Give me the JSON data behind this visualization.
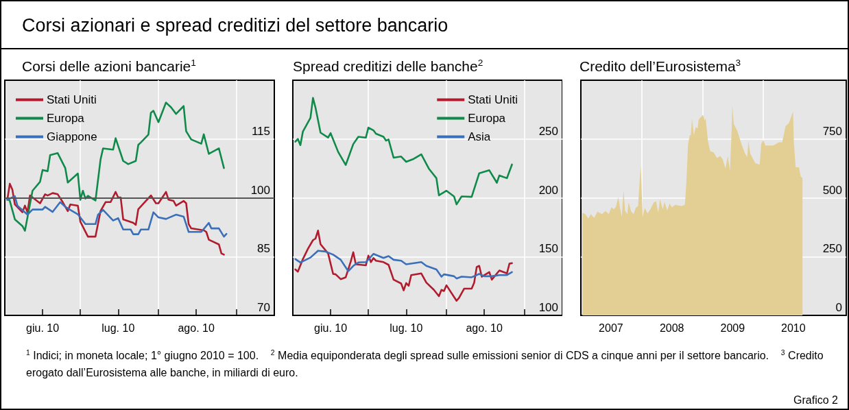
{
  "chart_data": [
    {
      "type": "other",
      "title": "Corsi azionari e spread creditizi del settore bancario",
      "annotations": [
        "$^{1}$ Indici; in moneta locale; 1° giugno 2010 = 100.",
        "$^{2}$ Media equiponderata degli spread sulle emissioni senior di CDS a cinque anni per il settore bancario.",
        "$^{3}$ Credito erogato dall’Eurosistema alle banche, in miliardi di euro.",
        "Grafico 2"
      ]
    },
    {
      "type": "line",
      "title": "Corsi delle azioni bancarie$^{1}$",
      "xlim": [
        "2010-06-01",
        "2010-09-16"
      ],
      "xticks": [
        {
          "value": "2010-06-16",
          "label": "giu. 10"
        },
        {
          "value": "2010-07-01",
          "label": null
        },
        {
          "value": "2010-07-16",
          "label": "lug. 10"
        },
        {
          "value": "2010-08-01",
          "label": null
        },
        {
          "value": "2010-08-16",
          "label": "ago. 10"
        },
        {
          "value": "2010-09-01",
          "label": null
        }
      ],
      "ylim": [
        70,
        130
      ],
      "yticks": [
        70,
        85,
        100,
        115
      ],
      "grid": true,
      "legend": "top left",
      "ref_lines": [
        {
          "axis": "y",
          "value": 100,
          "color": "#555555"
        }
      ],
      "series": [
        {
          "name": "Stati Uniti",
          "color": "#b01c2e",
          "x": [
            "2010-06-02",
            "2010-06-03",
            "2010-06-04",
            "2010-06-05",
            "2010-06-08",
            "2010-06-09",
            "2010-06-10",
            "2010-06-11",
            "2010-06-15",
            "2010-06-17",
            "2010-06-18",
            "2010-06-20",
            "2010-06-22",
            "2010-06-24",
            "2010-06-26",
            "2010-06-27",
            "2010-06-30",
            "2010-07-01",
            "2010-07-04",
            "2010-07-07",
            "2010-07-09",
            "2010-07-11",
            "2010-07-13",
            "2010-07-15",
            "2010-07-16",
            "2010-07-17",
            "2010-07-18",
            "2010-07-22",
            "2010-07-23",
            "2010-07-24",
            "2010-07-29",
            "2010-07-31",
            "2010-08-01",
            "2010-08-04",
            "2010-08-05",
            "2010-08-07",
            "2010-08-08",
            "2010-08-11",
            "2010-08-12",
            "2010-08-13",
            "2010-08-14",
            "2010-08-19",
            "2010-08-20",
            "2010-08-21",
            "2010-08-25",
            "2010-08-26",
            "2010-08-27"
          ],
          "values": [
            99.5,
            103.6,
            102.1,
            98.3,
            96.3,
            98.0,
            96.3,
            100.6,
            98.6,
            100.9,
            100.6,
            101.2,
            100.9,
            98.9,
            96.6,
            98.3,
            98.0,
            93.9,
            90.1,
            90.1,
            96.6,
            98.9,
            98.9,
            101.5,
            100.1,
            100.1,
            94.5,
            93.6,
            93.1,
            97.1,
            100.6,
            98.6,
            98.6,
            101.5,
            99.5,
            99.2,
            98.0,
            99.2,
            98.6,
            93.3,
            92.2,
            91.7,
            91.3,
            89.3,
            88.1,
            85.8,
            85.5
          ]
        },
        {
          "name": "Europa",
          "color": "#0f8a4a",
          "x": [
            "2010-06-02",
            "2010-06-03",
            "2010-06-05",
            "2010-06-08",
            "2010-06-09",
            "2010-06-12",
            "2010-06-15",
            "2010-06-16",
            "2010-06-18",
            "2010-06-19",
            "2010-06-22",
            "2010-06-25",
            "2010-06-26",
            "2010-06-30",
            "2010-07-01",
            "2010-07-02",
            "2010-07-03",
            "2010-07-04",
            "2010-07-07",
            "2010-07-09",
            "2010-07-10",
            "2010-07-14",
            "2010-07-15",
            "2010-07-18",
            "2010-07-20",
            "2010-07-23",
            "2010-07-24",
            "2010-07-25",
            "2010-07-28",
            "2010-07-29",
            "2010-07-30",
            "2010-08-01",
            "2010-08-04",
            "2010-08-06",
            "2010-08-08",
            "2010-08-11",
            "2010-08-12",
            "2010-08-14",
            "2010-08-18",
            "2010-08-19",
            "2010-08-21",
            "2010-08-25",
            "2010-08-27"
          ],
          "values": [
            99.8,
            99.2,
            94.5,
            92.8,
            91.6,
            101.8,
            104.1,
            107.1,
            106.8,
            110.9,
            111.4,
            107.6,
            103.9,
            106.2,
            99.5,
            101.8,
            99.8,
            100.5,
            99.3,
            109.7,
            112.6,
            112.3,
            115.2,
            109.4,
            108.6,
            109.4,
            113.5,
            114.1,
            116.1,
            121.7,
            122.2,
            119.3,
            124.3,
            123.1,
            121.4,
            123.4,
            117.0,
            114.9,
            113.8,
            116.2,
            111.2,
            112.6,
            107.6
          ]
        },
        {
          "name": "Giappone",
          "color": "#3a6fba",
          "x": [
            "2010-06-02",
            "2010-06-05",
            "2010-06-06",
            "2010-06-10",
            "2010-06-12",
            "2010-06-16",
            "2010-06-17",
            "2010-06-20",
            "2010-06-23",
            "2010-06-25",
            "2010-06-27",
            "2010-06-30",
            "2010-07-03",
            "2010-07-07",
            "2010-07-08",
            "2010-07-10",
            "2010-07-14",
            "2010-07-16",
            "2010-07-18",
            "2010-07-21",
            "2010-07-22",
            "2010-07-24",
            "2010-07-25",
            "2010-07-28",
            "2010-07-30",
            "2010-08-01",
            "2010-08-04",
            "2010-08-08",
            "2010-08-11",
            "2010-08-13",
            "2010-08-18",
            "2010-08-21",
            "2010-08-22",
            "2010-08-25",
            "2010-08-27",
            "2010-08-28"
          ],
          "values": [
            99.5,
            100.4,
            98.0,
            95.7,
            97.0,
            97.0,
            97.7,
            96.4,
            98.9,
            97.7,
            96.9,
            95.8,
            93.3,
            93.3,
            95.7,
            96.9,
            94.2,
            94.8,
            91.9,
            91.9,
            90.7,
            90.7,
            91.9,
            91.9,
            96.3,
            95.0,
            94.6,
            95.7,
            95.2,
            91.3,
            91.3,
            93.6,
            92.2,
            92.2,
            90.1,
            90.8
          ]
        }
      ]
    },
    {
      "type": "line",
      "title": "Spread creditizi delle banche$^{2}$",
      "xlim": [
        "2010-06-01",
        "2010-09-16"
      ],
      "xticks": [
        {
          "value": "2010-06-16",
          "label": "giu. 10"
        },
        {
          "value": "2010-07-01",
          "label": null
        },
        {
          "value": "2010-07-16",
          "label": "lug. 10"
        },
        {
          "value": "2010-08-01",
          "label": null
        },
        {
          "value": "2010-08-16",
          "label": "ago. 10"
        },
        {
          "value": "2010-09-01",
          "label": null
        }
      ],
      "ylim": [
        100,
        300
      ],
      "yticks": [
        100,
        150,
        200,
        250
      ],
      "grid": true,
      "legend": "top right",
      "series": [
        {
          "name": "Stati Uniti",
          "color": "#b01c2e",
          "x": [
            "2010-06-02",
            "2010-06-03",
            "2010-06-05",
            "2010-06-07",
            "2010-06-09",
            "2010-06-10",
            "2010-06-11",
            "2010-06-12",
            "2010-06-15",
            "2010-06-17",
            "2010-06-18",
            "2010-06-20",
            "2010-06-22",
            "2010-06-24",
            "2010-06-25",
            "2010-06-26",
            "2010-06-30",
            "2010-07-01",
            "2010-07-02",
            "2010-07-03",
            "2010-07-04",
            "2010-07-07",
            "2010-07-09",
            "2010-07-11",
            "2010-07-14",
            "2010-07-15",
            "2010-07-16",
            "2010-07-17",
            "2010-07-18",
            "2010-07-22",
            "2010-07-24",
            "2010-07-27",
            "2010-07-29",
            "2010-07-30",
            "2010-07-31",
            "2010-08-01",
            "2010-08-05",
            "2010-08-06",
            "2010-08-08",
            "2010-08-11",
            "2010-08-12",
            "2010-08-13",
            "2010-08-14",
            "2010-08-15",
            "2010-08-18",
            "2010-08-19",
            "2010-08-22",
            "2010-08-25",
            "2010-08-26",
            "2010-08-27"
          ],
          "values": [
            139.1,
            137.2,
            147.9,
            156.6,
            164.0,
            165.3,
            172.1,
            160.5,
            152.7,
            135.3,
            134.9,
            130.8,
            132.4,
            145.9,
            153.7,
            143.4,
            142.6,
            150.8,
            145.3,
            148.8,
            146.5,
            145.3,
            143.0,
            130.4,
            127.1,
            121.3,
            127.5,
            125.2,
            134.3,
            135.7,
            127.9,
            121.7,
            116.3,
            121.7,
            120.7,
            125.6,
            112.4,
            114.9,
            122.7,
            122.7,
            127.9,
            141.1,
            142.1,
            132.9,
            136.8,
            130.4,
            138.2,
            135.7,
            144.0,
            144.4
          ]
        },
        {
          "name": "Europa",
          "color": "#0f8a4a",
          "x": [
            "2010-06-02",
            "2010-06-03",
            "2010-06-04",
            "2010-06-05",
            "2010-06-08",
            "2010-06-09",
            "2010-06-10",
            "2010-06-12",
            "2010-06-15",
            "2010-06-16",
            "2010-06-19",
            "2010-06-22",
            "2010-06-25",
            "2010-06-27",
            "2010-06-30",
            "2010-07-01",
            "2010-07-03",
            "2010-07-04",
            "2010-07-07",
            "2010-07-08",
            "2010-07-09",
            "2010-07-11",
            "2010-07-14",
            "2010-07-16",
            "2010-07-19",
            "2010-07-22",
            "2010-07-25",
            "2010-07-28",
            "2010-07-29",
            "2010-08-01",
            "2010-08-04",
            "2010-08-05",
            "2010-08-07",
            "2010-08-11",
            "2010-08-14",
            "2010-08-18",
            "2010-08-21",
            "2010-08-22",
            "2010-08-25",
            "2010-08-27"
          ],
          "values": [
            247.7,
            250.0,
            244.8,
            256.4,
            268.0,
            284.9,
            276.7,
            255.4,
            251.2,
            255.0,
            239.0,
            227.9,
            245.7,
            251.9,
            251.2,
            259.7,
            257.4,
            254.5,
            251.9,
            248.6,
            249.6,
            234.1,
            235.1,
            230.6,
            233.1,
            237.0,
            224.8,
            216.7,
            202.1,
            206.0,
            201.2,
            194.4,
            201.2,
            200.8,
            220.9,
            223.4,
            212.8,
            219.0,
            216.7,
            228.3
          ]
        },
        {
          "name": "Asia",
          "color": "#3a6fba",
          "x": [
            "2010-06-02",
            "2010-06-04",
            "2010-06-08",
            "2010-06-11",
            "2010-06-14",
            "2010-06-17",
            "2010-06-20",
            "2010-06-23",
            "2010-06-25",
            "2010-06-27",
            "2010-06-30",
            "2010-07-03",
            "2010-07-07",
            "2010-07-09",
            "2010-07-11",
            "2010-07-14",
            "2010-07-16",
            "2010-07-22",
            "2010-07-24",
            "2010-07-28",
            "2010-07-30",
            "2010-07-31",
            "2010-08-04",
            "2010-08-05",
            "2010-08-07",
            "2010-08-11",
            "2010-08-14",
            "2010-08-16",
            "2010-08-19",
            "2010-08-22",
            "2010-08-25",
            "2010-08-27"
          ],
          "values": [
            147.9,
            145.0,
            149.2,
            155.0,
            154.3,
            151.7,
            147.3,
            137.6,
            142.1,
            145.0,
            145.3,
            152.3,
            148.8,
            150.4,
            147.3,
            146.5,
            143.4,
            145.3,
            142.1,
            139.1,
            132.9,
            134.9,
            133.3,
            131.4,
            132.9,
            132.4,
            135.3,
            133.3,
            133.3,
            134.3,
            134.3,
            136.8
          ]
        }
      ]
    },
    {
      "type": "area",
      "title": "Credito dell’Eurosistema$^{3}$",
      "xlim": [
        "2007-01-01",
        "2011-05-15"
      ],
      "xticks": [
        {
          "value": "2007-07-01",
          "label": "2007"
        },
        {
          "value": "2008-01-01",
          "label": null
        },
        {
          "value": "2008-07-01",
          "label": "2008"
        },
        {
          "value": "2009-01-01",
          "label": null
        },
        {
          "value": "2009-07-01",
          "label": "2009"
        },
        {
          "value": "2010-01-01",
          "label": null
        },
        {
          "value": "2010-07-01",
          "label": "2010"
        }
      ],
      "ylim": [
        0,
        1000
      ],
      "yticks": [
        0,
        250,
        500,
        750
      ],
      "grid": true,
      "series": [
        {
          "color": "#e3cf94",
          "x": [
            "2007-01-10",
            "2007-01-28",
            "2007-02-14",
            "2007-03-02",
            "2007-03-22",
            "2007-04-11",
            "2007-05-08",
            "2007-05-29",
            "2007-06-18",
            "2007-07-04",
            "2007-07-18",
            "2007-07-31",
            "2007-08-14",
            "2007-08-25",
            "2007-09-04",
            "2007-09-15",
            "2007-09-23",
            "2007-10-07",
            "2007-10-15",
            "2007-10-31",
            "2007-11-14",
            "2007-11-27",
            "2007-12-11",
            "2007-12-22",
            "2007-12-28",
            "2008-01-07",
            "2008-01-20",
            "2008-02-06",
            "2008-02-23",
            "2008-03-14",
            "2008-03-28",
            "2008-04-10",
            "2008-04-21",
            "2008-05-07",
            "2008-05-18",
            "2008-06-03",
            "2008-06-17",
            "2008-07-01",
            "2008-07-21",
            "2008-08-10",
            "2008-08-30",
            "2008-09-17",
            "2008-09-26",
            "2008-10-06",
            "2008-10-17",
            "2008-10-23",
            "2008-10-30",
            "2008-11-10",
            "2008-11-21",
            "2008-12-03",
            "2008-12-09",
            "2008-12-23",
            "2009-01-04",
            "2009-01-14",
            "2009-01-20",
            "2009-02-03",
            "2009-02-16",
            "2009-03-09",
            "2009-03-29",
            "2009-04-18",
            "2009-05-02",
            "2009-05-19",
            "2009-06-02",
            "2009-06-15",
            "2009-06-25",
            "2009-06-29",
            "2009-07-08",
            "2009-07-29",
            "2009-08-24",
            "2009-09-14",
            "2009-09-27",
            "2009-10-04",
            "2009-10-15",
            "2009-11-14",
            "2009-12-11",
            "2009-12-19",
            "2010-01-01",
            "2010-01-14",
            "2010-03-02",
            "2010-04-05",
            "2010-04-25",
            "2010-05-15",
            "2010-06-04",
            "2010-06-18",
            "2010-06-29",
            "2010-07-04",
            "2010-07-15",
            "2010-08-04",
            "2010-08-14",
            "2010-08-25"
          ],
          "values": [
            436,
            431,
            412,
            431,
            415,
            441,
            431,
            444,
            431,
            460,
            451,
            463,
            502,
            455,
            419,
            533,
            446,
            431,
            480,
            441,
            431,
            457,
            465,
            591,
            635,
            417,
            457,
            434,
            451,
            480,
            485,
            436,
            494,
            451,
            483,
            446,
            475,
            460,
            470,
            467,
            465,
            470,
            562,
            727,
            767,
            767,
            838,
            766,
            800,
            795,
            833,
            843,
            853,
            829,
            838,
            741,
            698,
            693,
            669,
            678,
            664,
            625,
            678,
            615,
            785,
            893,
            814,
            785,
            727,
            688,
            673,
            741,
            688,
            647,
            641,
            727,
            746,
            722,
            722,
            736,
            736,
            804,
            818,
            843,
            867,
            736,
            630,
            630,
            591,
            583
          ]
        }
      ]
    }
  ]
}
